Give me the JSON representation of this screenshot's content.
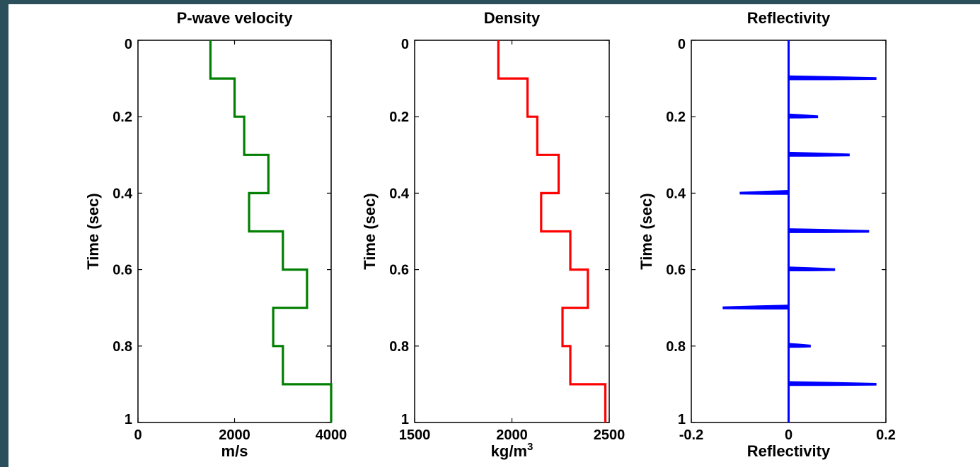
{
  "chart_data": [
    {
      "type": "line",
      "title": "P-wave velocity",
      "xlabel": "m/s",
      "ylabel": "Time (sec)",
      "xlim": [
        0,
        4000
      ],
      "ylim": [
        1,
        0
      ],
      "xticks": [
        "0",
        "2000",
        "4000"
      ],
      "yticks": [
        "0",
        "0.2",
        "0.4",
        "0.6",
        "0.8",
        "1"
      ],
      "color": "#007f00",
      "series": [
        {
          "points": [
            [
              1500,
              0
            ],
            [
              1500,
              0.1
            ],
            [
              2000,
              0.1
            ],
            [
              2000,
              0.2
            ],
            [
              2200,
              0.2
            ],
            [
              2200,
              0.3
            ],
            [
              2700,
              0.3
            ],
            [
              2700,
              0.4
            ],
            [
              2300,
              0.4
            ],
            [
              2300,
              0.5
            ],
            [
              3000,
              0.5
            ],
            [
              3000,
              0.6
            ],
            [
              3500,
              0.6
            ],
            [
              3500,
              0.7
            ],
            [
              2800,
              0.7
            ],
            [
              2800,
              0.8
            ],
            [
              3000,
              0.8
            ],
            [
              3000,
              0.9
            ],
            [
              4000,
              0.9
            ],
            [
              4000,
              1.0
            ]
          ]
        }
      ]
    },
    {
      "type": "line",
      "title": "Density",
      "xlabel": "kg/m",
      "xlabel_sup": "3",
      "ylabel": "Time (sec)",
      "xlim": [
        1500,
        2500
      ],
      "ylim": [
        1,
        0
      ],
      "xticks": [
        "1500",
        "2000",
        "2500"
      ],
      "yticks": [
        "0",
        "0.2",
        "0.4",
        "0.6",
        "0.8",
        "1"
      ],
      "color": "#ff0000",
      "series": [
        {
          "points": [
            [
              1930,
              0
            ],
            [
              1930,
              0.1
            ],
            [
              2080,
              0.1
            ],
            [
              2080,
              0.2
            ],
            [
              2130,
              0.2
            ],
            [
              2130,
              0.3
            ],
            [
              2240,
              0.3
            ],
            [
              2240,
              0.4
            ],
            [
              2150,
              0.4
            ],
            [
              2150,
              0.5
            ],
            [
              2300,
              0.5
            ],
            [
              2300,
              0.6
            ],
            [
              2390,
              0.6
            ],
            [
              2390,
              0.7
            ],
            [
              2260,
              0.7
            ],
            [
              2260,
              0.8
            ],
            [
              2300,
              0.8
            ],
            [
              2300,
              0.9
            ],
            [
              2480,
              0.9
            ],
            [
              2480,
              1.0
            ]
          ]
        }
      ]
    },
    {
      "type": "bar",
      "title": "Reflectivity",
      "xlabel": "Reflectivity",
      "ylabel": "Time (sec)",
      "xlim": [
        -0.2,
        0.2
      ],
      "ylim": [
        1,
        0
      ],
      "xticks": [
        "-0.2",
        "0",
        "0.2"
      ],
      "yticks": [
        "0",
        "0.2",
        "0.4",
        "0.6",
        "0.8",
        "1"
      ],
      "color": "#0000ff",
      "orientation": "horizontal",
      "series": [
        {
          "times": [
            0.1,
            0.2,
            0.3,
            0.4,
            0.5,
            0.6,
            0.7,
            0.8,
            0.9
          ],
          "values": [
            0.18,
            0.06,
            0.125,
            -0.1,
            0.165,
            0.095,
            -0.135,
            0.045,
            0.18
          ]
        }
      ]
    }
  ]
}
